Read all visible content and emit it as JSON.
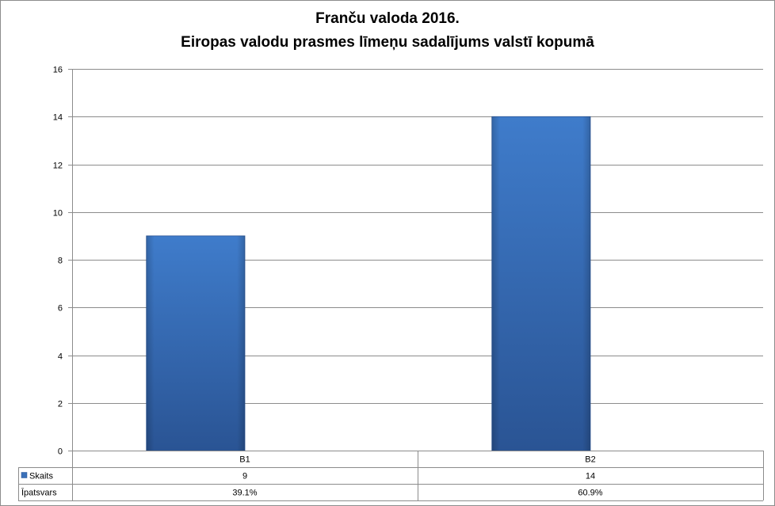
{
  "chart_data": {
    "type": "bar",
    "title": "Franču valoda 2016.",
    "subtitle": "Eiropas valodu prasmes līmeņu sadalījums valstī kopumā",
    "categories": [
      "B1",
      "B2"
    ],
    "series": [
      {
        "name": "Skaits",
        "values": [
          9,
          14
        ],
        "color": "#3a70b8"
      }
    ],
    "data_table": {
      "rows": [
        {
          "label": "Skaits",
          "values": [
            "9",
            "14"
          ],
          "has_legend_key": true
        },
        {
          "label": "Īpatsvars",
          "values": [
            "39.1%",
            "60.9%"
          ],
          "has_legend_key": false
        }
      ]
    },
    "ylim": [
      0,
      16
    ],
    "yticks": [
      0,
      2,
      4,
      6,
      8,
      10,
      12,
      14,
      16
    ],
    "grid": true,
    "legend": "data-table"
  }
}
